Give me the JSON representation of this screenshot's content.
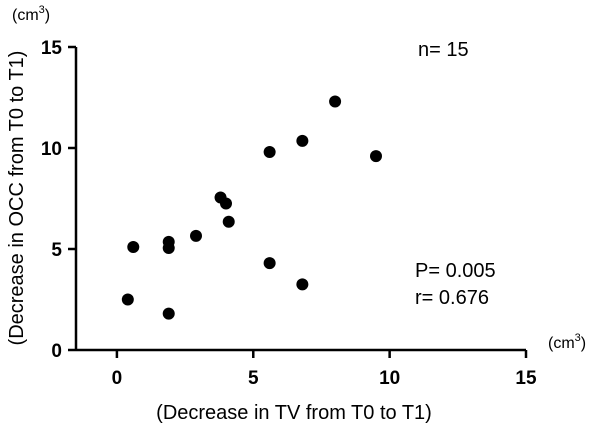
{
  "chart_data": {
    "type": "scatter",
    "title": "",
    "xlabel": "(Decrease in TV from T0 to T1)",
    "ylabel": "(Decrease in OCC from T0 to T1)",
    "x_unit": "(cm3)",
    "y_unit": "(cm3)",
    "xlim": [
      -1.5,
      15
    ],
    "ylim": [
      0,
      15
    ],
    "xticks": [
      0,
      5,
      10,
      15
    ],
    "yticks": [
      0,
      5,
      10,
      15
    ],
    "grid": false,
    "series": [
      {
        "points": [
          {
            "x": 0.4,
            "y": 2.5
          },
          {
            "x": 0.6,
            "y": 5.1
          },
          {
            "x": 1.9,
            "y": 1.8
          },
          {
            "x": 1.9,
            "y": 5.05
          },
          {
            "x": 1.9,
            "y": 5.35
          },
          {
            "x": 2.9,
            "y": 5.65
          },
          {
            "x": 3.8,
            "y": 7.55
          },
          {
            "x": 4.0,
            "y": 7.25
          },
          {
            "x": 4.1,
            "y": 6.35
          },
          {
            "x": 5.6,
            "y": 9.8
          },
          {
            "x": 5.6,
            "y": 4.3
          },
          {
            "x": 6.8,
            "y": 10.35
          },
          {
            "x": 6.8,
            "y": 3.25
          },
          {
            "x": 8.0,
            "y": 12.3
          },
          {
            "x": 9.5,
            "y": 9.6
          }
        ]
      }
    ],
    "annotations": {
      "n": "n= 15",
      "p": "P= 0.005",
      "r": "r=  0.676"
    }
  }
}
